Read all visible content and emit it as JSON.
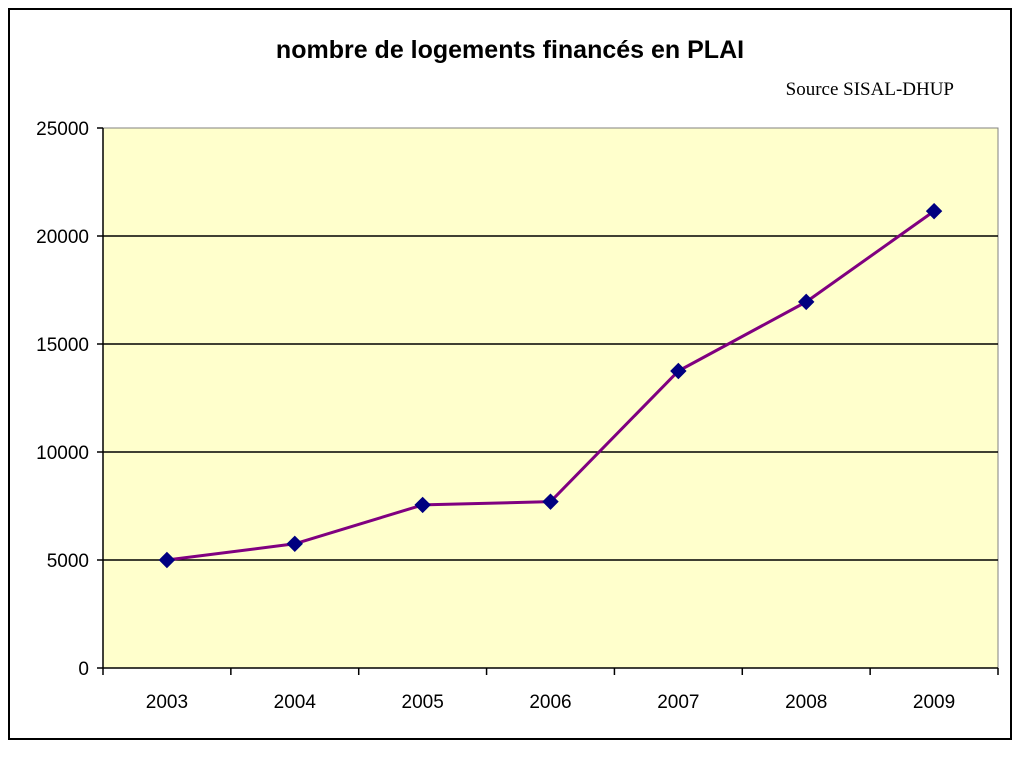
{
  "chart_data": {
    "type": "line",
    "title": "nombre de logements financés en PLAI",
    "annotation": "Source SISAL-DHUP",
    "xlabel": "",
    "ylabel": "",
    "categories": [
      "2003",
      "2004",
      "2005",
      "2006",
      "2007",
      "2008",
      "2009"
    ],
    "series": [
      {
        "values": [
          5000,
          5750,
          7550,
          7700,
          13750,
          16950,
          21150
        ]
      }
    ],
    "ylim": [
      0,
      25000
    ],
    "yticks": [
      0,
      5000,
      10000,
      15000,
      20000,
      25000
    ],
    "grid": true,
    "legend": "none",
    "colors": {
      "plot_background": "#FFFFCC",
      "line": "#800080",
      "marker": "#000080",
      "gridline": "#000000",
      "axis": "#000000"
    },
    "marker": "diamond"
  }
}
